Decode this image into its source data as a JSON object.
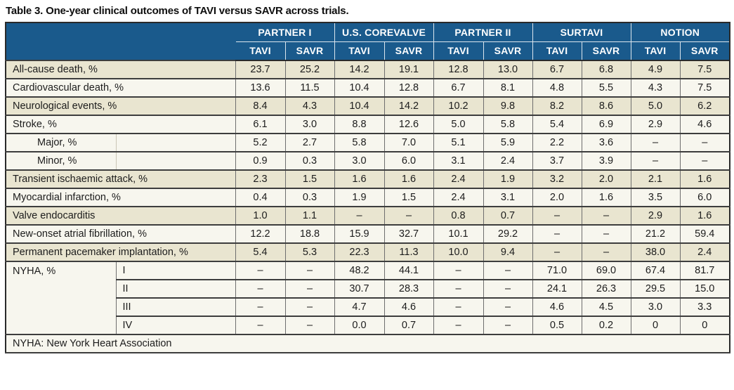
{
  "title": "Table 3. One-year clinical outcomes of TAVI versus SAVR across trials.",
  "colors": {
    "header_blue": "#1a5a8c",
    "row_shaded_beige": "#e9e5d0",
    "row_plain_offwhite": "#f7f6ee"
  },
  "table": {
    "trial_groups": [
      {
        "label": "PARTNER I"
      },
      {
        "label": "U.S. COREVALVE"
      },
      {
        "label": "PARTNER II"
      },
      {
        "label": "SURTAVI"
      },
      {
        "label": "NOTION"
      }
    ],
    "subheaders": [
      "TAVI",
      "SAVR"
    ],
    "rows": [
      {
        "label": "All-cause death, %",
        "indent": false,
        "shaded": true,
        "values": [
          "23.7",
          "25.2",
          "14.2",
          "19.1",
          "12.8",
          "13.0",
          "6.7",
          "6.8",
          "4.9",
          "7.5"
        ]
      },
      {
        "label": "Cardiovascular death, %",
        "indent": false,
        "shaded": false,
        "values": [
          "13.6",
          "11.5",
          "10.4",
          "12.8",
          "6.7",
          "8.1",
          "4.8",
          "5.5",
          "4.3",
          "7.5"
        ]
      },
      {
        "label": "Neurological events, %",
        "indent": false,
        "shaded": true,
        "values": [
          "8.4",
          "4.3",
          "10.4",
          "14.2",
          "10.2",
          "9.8",
          "8.2",
          "8.6",
          "5.0",
          "6.2"
        ]
      },
      {
        "label": "Stroke, %",
        "indent": false,
        "shaded": false,
        "values": [
          "6.1",
          "3.0",
          "8.8",
          "12.6",
          "5.0",
          "5.8",
          "5.4",
          "6.9",
          "2.9",
          "4.6"
        ]
      },
      {
        "label": "Major, %",
        "indent": true,
        "shaded": false,
        "values": [
          "5.2",
          "2.7",
          "5.8",
          "7.0",
          "5.1",
          "5.9",
          "2.2",
          "3.6",
          "–",
          "–"
        ]
      },
      {
        "label": "Minor, %",
        "indent": true,
        "shaded": false,
        "values": [
          "0.9",
          "0.3",
          "3.0",
          "6.0",
          "3.1",
          "2.4",
          "3.7",
          "3.9",
          "–",
          "–"
        ]
      },
      {
        "label": "Transient ischaemic attack, %",
        "indent": false,
        "shaded": true,
        "values": [
          "2.3",
          "1.5",
          "1.6",
          "1.6",
          "2.4",
          "1.9",
          "3.2",
          "2.0",
          "2.1",
          "1.6"
        ]
      },
      {
        "label": "Myocardial infarction, %",
        "indent": false,
        "shaded": false,
        "values": [
          "0.4",
          "0.3",
          "1.9",
          "1.5",
          "2.4",
          "3.1",
          "2.0",
          "1.6",
          "3.5",
          "6.0"
        ]
      },
      {
        "label": "Valve endocarditis",
        "indent": false,
        "shaded": true,
        "values": [
          "1.0",
          "1.1",
          "–",
          "–",
          "0.8",
          "0.7",
          "–",
          "–",
          "2.9",
          "1.6"
        ]
      },
      {
        "label": "New-onset atrial fibrillation, %",
        "indent": false,
        "shaded": false,
        "values": [
          "12.2",
          "18.8",
          "15.9",
          "32.7",
          "10.1",
          "29.2",
          "–",
          "–",
          "21.2",
          "59.4"
        ]
      },
      {
        "label": "Permanent pacemaker implantation, %",
        "indent": false,
        "shaded": true,
        "values": [
          "5.4",
          "5.3",
          "22.3",
          "11.3",
          "10.0",
          "9.4",
          "–",
          "–",
          "38.0",
          "2.4"
        ]
      }
    ],
    "nyha_group": {
      "label": "NYHA, %",
      "classes": [
        {
          "label": "I",
          "values": [
            "–",
            "–",
            "48.2",
            "44.1",
            "–",
            "–",
            "71.0",
            "69.0",
            "67.4",
            "81.7"
          ]
        },
        {
          "label": "II",
          "values": [
            "–",
            "–",
            "30.7",
            "28.3",
            "–",
            "–",
            "24.1",
            "26.3",
            "29.5",
            "15.0"
          ]
        },
        {
          "label": "III",
          "values": [
            "–",
            "–",
            "4.7",
            "4.6",
            "–",
            "–",
            "4.6",
            "4.5",
            "3.0",
            "3.3"
          ]
        },
        {
          "label": "IV",
          "values": [
            "–",
            "–",
            "0.0",
            "0.7",
            "–",
            "–",
            "0.5",
            "0.2",
            "0",
            "0"
          ]
        }
      ]
    },
    "footnote": "NYHA: New York Heart Association"
  }
}
